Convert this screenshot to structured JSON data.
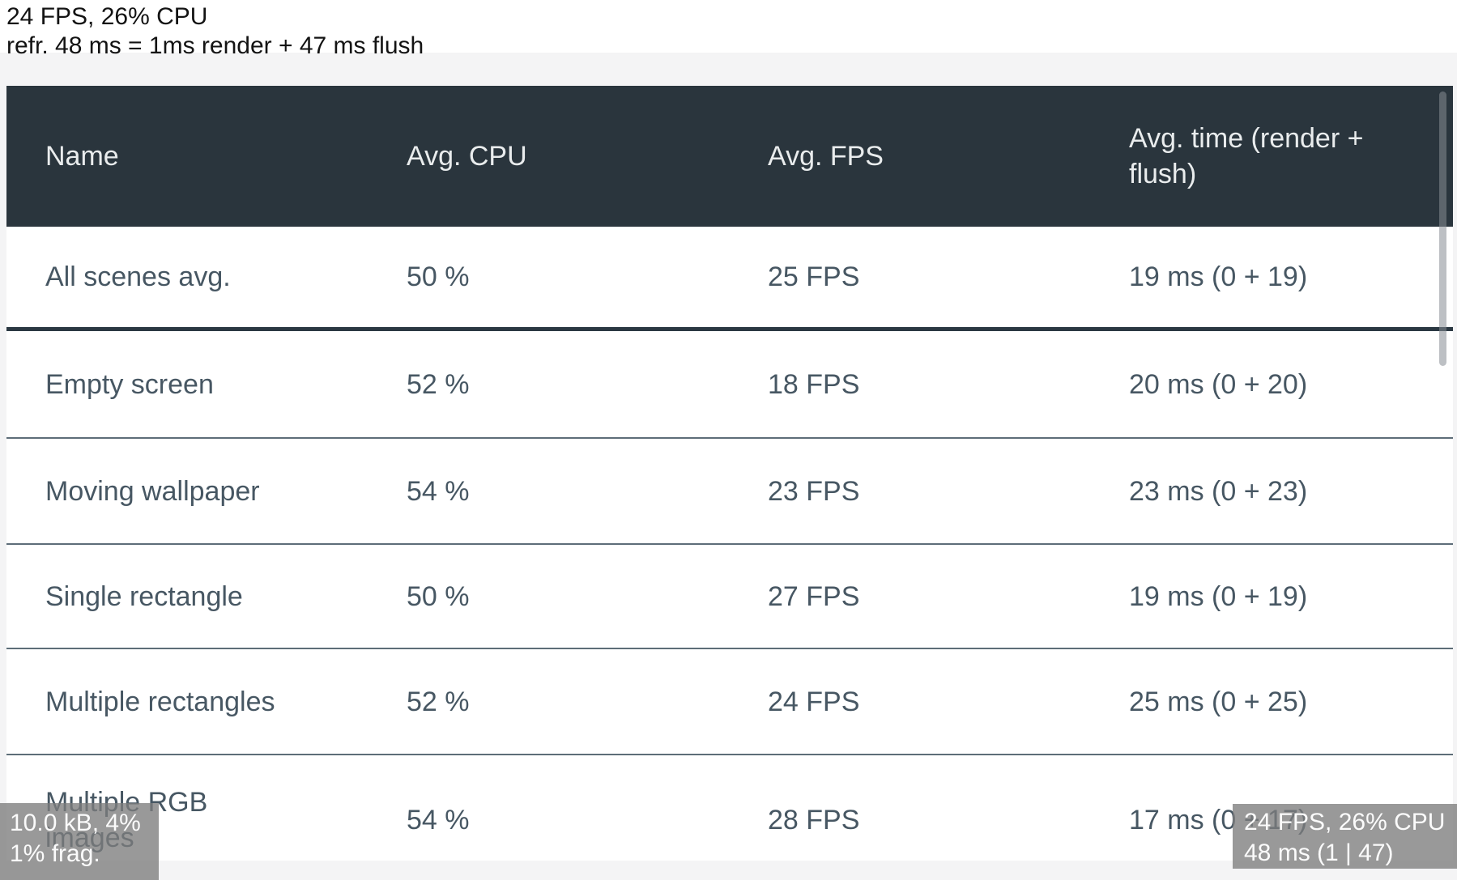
{
  "status": {
    "line1": "24 FPS, 26% CPU",
    "line2": "refr. 48 ms = 1ms render + 47 ms flush"
  },
  "table": {
    "columns": [
      {
        "label": "Name"
      },
      {
        "label": "Avg. CPU"
      },
      {
        "label": "Avg. FPS"
      },
      {
        "label": "Avg. time (render + flush)"
      }
    ],
    "rows": [
      {
        "name": "All scenes avg.",
        "cpu": "50 %",
        "fps": "25 FPS",
        "time": "19 ms (0 + 19)"
      },
      {
        "name": "Empty screen",
        "cpu": "52 %",
        "fps": "18 FPS",
        "time": "20 ms (0 + 20)"
      },
      {
        "name": "Moving wallpaper",
        "cpu": "54 %",
        "fps": "23 FPS",
        "time": "23 ms (0 + 23)"
      },
      {
        "name": "Single rectangle",
        "cpu": "50 %",
        "fps": "27 FPS",
        "time": "19 ms (0 + 19)"
      },
      {
        "name": "Multiple rectangles",
        "cpu": "52 %",
        "fps": "24 FPS",
        "time": "25 ms (0 + 25)"
      },
      {
        "name": "Multiple RGB images",
        "cpu": "54 %",
        "fps": "28 FPS",
        "time": "17 ms (0 + 17)"
      }
    ]
  },
  "overlays": {
    "bottom_left": {
      "line1": "10.0 kB, 4%",
      "line2": "1% frag."
    },
    "bottom_right": {
      "line1": "24 FPS, 26% CPU",
      "line2": "48 ms (1 | 47)"
    }
  },
  "colors": {
    "header_bg": "#2a353d",
    "header_text": "#e9eced",
    "cell_text": "#475763",
    "separator_thin": "#5d6d78",
    "separator_thick": "#2b3842",
    "overlay_bg": "rgba(124,124,124,0.78)",
    "overlay_text": "#fbfbfb",
    "page_bg": "#f4f4f5"
  }
}
